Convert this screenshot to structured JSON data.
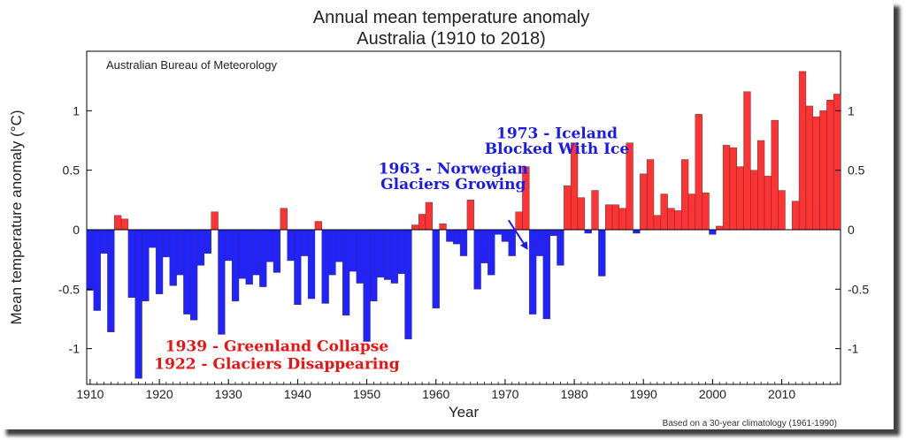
{
  "chart_data": {
    "type": "bar",
    "title_line1": "Annual mean temperature anomaly",
    "title_line2": "Australia (1910 to 2018)",
    "source": "Australian Bureau of Meteorology",
    "xlabel": "Year",
    "ylabel": "Mean temperature anomaly (°C)",
    "footnote": "Based on a 30-year climatology (1961-1990)",
    "xlim": [
      1909.5,
      2018.5
    ],
    "ylim": [
      -1.3,
      1.5
    ],
    "xticks": [
      1910,
      1920,
      1930,
      1940,
      1950,
      1960,
      1970,
      1980,
      1990,
      2000,
      2010
    ],
    "yticks": [
      -1,
      -0.5,
      0,
      0.5,
      1
    ],
    "ytick_labels": [
      "-1",
      "-0.5",
      "0",
      "0.5",
      "1"
    ],
    "positive_color": "#ff3333",
    "negative_color": "#2222ff",
    "years": [
      1910,
      1911,
      1912,
      1913,
      1914,
      1915,
      1916,
      1917,
      1918,
      1919,
      1920,
      1921,
      1922,
      1923,
      1924,
      1925,
      1926,
      1927,
      1928,
      1929,
      1930,
      1931,
      1932,
      1933,
      1934,
      1935,
      1936,
      1937,
      1938,
      1939,
      1940,
      1941,
      1942,
      1943,
      1944,
      1945,
      1946,
      1947,
      1948,
      1949,
      1950,
      1951,
      1952,
      1953,
      1954,
      1955,
      1956,
      1957,
      1958,
      1959,
      1960,
      1961,
      1962,
      1963,
      1964,
      1965,
      1966,
      1967,
      1968,
      1969,
      1970,
      1971,
      1972,
      1973,
      1974,
      1975,
      1976,
      1977,
      1978,
      1979,
      1980,
      1981,
      1982,
      1983,
      1984,
      1985,
      1986,
      1987,
      1988,
      1989,
      1990,
      1991,
      1992,
      1993,
      1994,
      1995,
      1996,
      1997,
      1998,
      1999,
      2000,
      2001,
      2002,
      2003,
      2004,
      2005,
      2006,
      2007,
      2008,
      2009,
      2010,
      2011,
      2012,
      2013,
      2014,
      2015,
      2016,
      2017,
      2018
    ],
    "values": [
      -0.51,
      -0.68,
      -0.2,
      -0.86,
      0.12,
      0.09,
      -0.57,
      -1.25,
      -0.6,
      -0.15,
      -0.54,
      -0.23,
      -0.47,
      -0.38,
      -0.71,
      -0.76,
      -0.3,
      -0.2,
      0.15,
      -0.88,
      -0.26,
      -0.6,
      -0.41,
      -0.46,
      -0.38,
      -0.48,
      -0.27,
      -0.36,
      0.18,
      -0.26,
      -0.63,
      -0.22,
      -0.58,
      0.07,
      -0.62,
      -0.38,
      -0.27,
      -0.72,
      -0.35,
      -0.45,
      -0.94,
      -0.6,
      -0.4,
      -0.42,
      -0.45,
      -0.37,
      -0.92,
      0.04,
      0.13,
      0.23,
      -0.66,
      0.05,
      -0.1,
      -0.12,
      -0.22,
      0.25,
      -0.5,
      -0.28,
      -0.38,
      -0.04,
      -0.1,
      -0.22,
      0.15,
      0.53,
      -0.71,
      -0.22,
      -0.75,
      -0.05,
      -0.3,
      0.37,
      0.73,
      0.27,
      -0.03,
      0.33,
      -0.39,
      0.21,
      0.21,
      0.18,
      0.73,
      -0.03,
      0.47,
      0.59,
      0.12,
      0.3,
      0.18,
      0.16,
      0.59,
      0.3,
      0.97,
      0.31,
      -0.04,
      0.03,
      0.71,
      0.69,
      0.53,
      1.16,
      0.5,
      0.75,
      0.45,
      0.92,
      0.33,
      0.0,
      0.24,
      1.33,
      1.04,
      0.95,
      1.0,
      1.09,
      1.14
    ],
    "annotations": [
      {
        "text": "1973 - Iceland",
        "color": "#1a1aee",
        "year": 1977.5,
        "y": 0.77
      },
      {
        "text": "Blocked With Ice",
        "color": "#1a1aee",
        "year": 1977.5,
        "y": 0.64
      },
      {
        "text": "1963 - Norwegian",
        "color": "#1a1aee",
        "year": 1962.5,
        "y": 0.47
      },
      {
        "text": "Glaciers Growing",
        "color": "#1a1aee",
        "year": 1962.5,
        "y": 0.34
      },
      {
        "text": "1939 - Greenland Collapse",
        "color": "#ee1111",
        "year": 1937,
        "y": -1.02
      },
      {
        "text": "1922 - Glaciers Disappearing",
        "color": "#ee1111",
        "year": 1937,
        "y": -1.17
      }
    ],
    "arrow": {
      "from": {
        "year": 1970.5,
        "y": 0.08
      },
      "to": {
        "year": 1973.3,
        "y": -0.17
      },
      "color": "#1a1aee"
    }
  }
}
